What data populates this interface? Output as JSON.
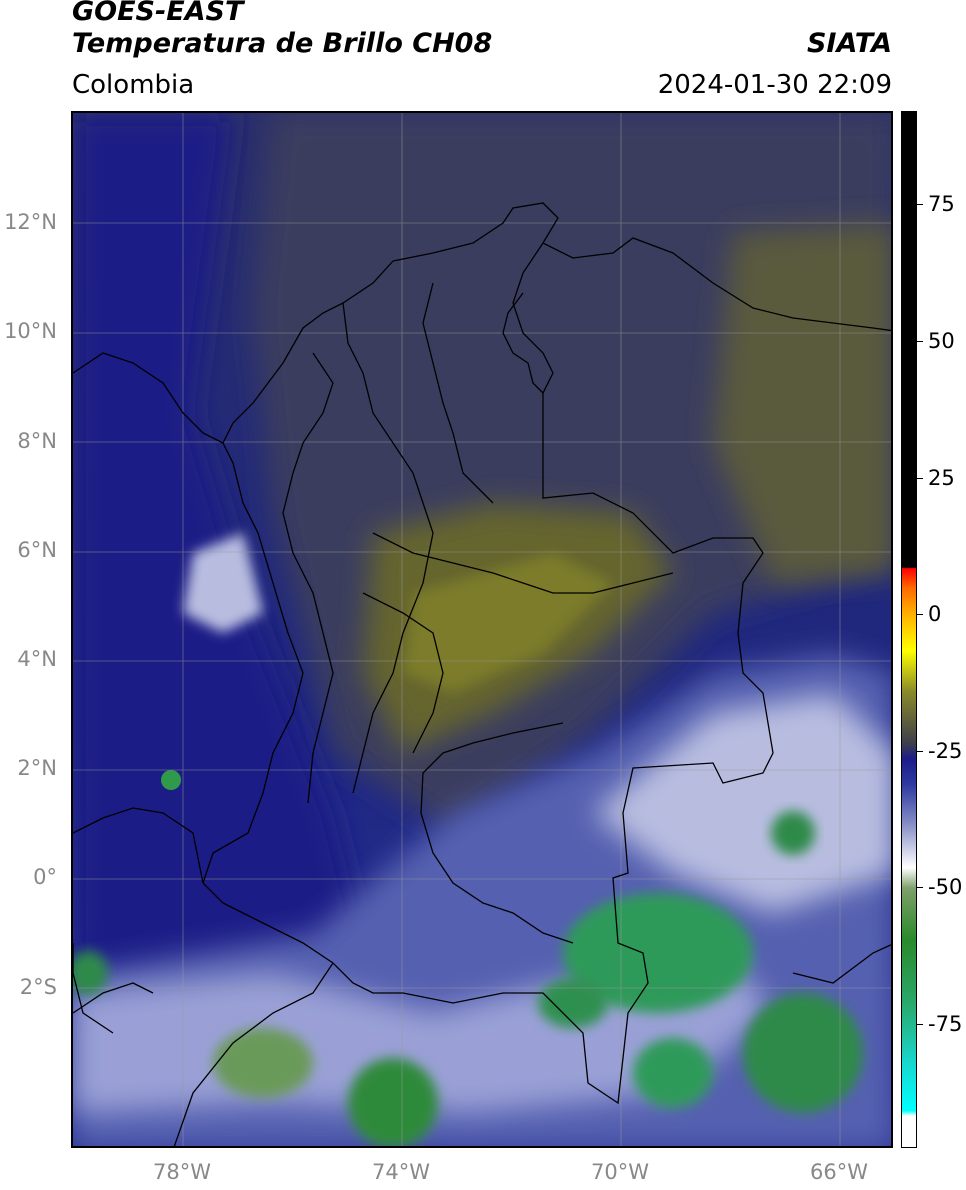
{
  "header": {
    "title_line1": "GOES-EAST",
    "title_line2": "Temperatura de Brillo CH08",
    "region": "Colombia",
    "source": "SIATA",
    "datetime": "2024-01-30 22:09"
  },
  "axes": {
    "lat_labels": [
      "12°N",
      "10°N",
      "8°N",
      "6°N",
      "4°N",
      "2°N",
      "0°",
      "2°S"
    ],
    "lon_labels": [
      "78°W",
      "74°W",
      "70°W",
      "66°W"
    ]
  },
  "colorbar": {
    "labels": [
      "75",
      "50",
      "25",
      "0",
      "-25",
      "-50",
      "-75"
    ],
    "colors": {
      "black": "#000000",
      "red": "#ff0000",
      "orange": "#ffb000",
      "yellow": "#ffff00",
      "olive": "#8a8a2a",
      "gray": "#3e3e4a",
      "navy": "#1c1c8a",
      "white": "#ffffff",
      "green": "#2a8a2a",
      "cyan": "#00ffff"
    }
  }
}
